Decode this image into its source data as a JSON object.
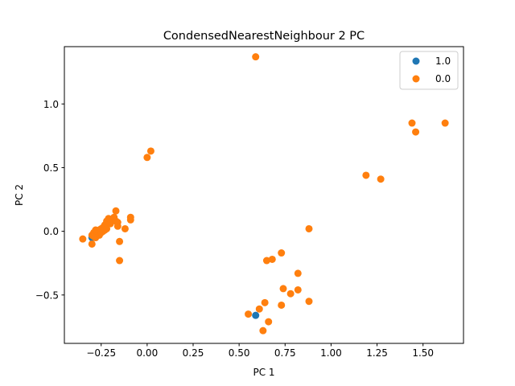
{
  "chart_data": {
    "type": "scatter",
    "title": "CondensedNearestNeighbour 2 PC",
    "xlabel": "PC 1",
    "ylabel": "PC 2",
    "xlim": [
      -0.45,
      1.72
    ],
    "ylim": [
      -0.88,
      1.45
    ],
    "xticks": [
      -0.25,
      0.0,
      0.25,
      0.5,
      0.75,
      1.0,
      1.25,
      1.5
    ],
    "xtick_labels": [
      "−0.25",
      "0.00",
      "0.25",
      "0.50",
      "0.75",
      "1.00",
      "1.25",
      "1.50"
    ],
    "yticks": [
      -0.5,
      0.0,
      0.5,
      1.0
    ],
    "ytick_labels": [
      "−0.5",
      "0.0",
      "0.5",
      "1.0"
    ],
    "grid": false,
    "legend_position": "top-right",
    "series": [
      {
        "name": "1.0",
        "color": "#1f77b4",
        "points": [
          [
            0.59,
            -0.66
          ],
          [
            -0.3,
            -0.05
          ]
        ]
      },
      {
        "name": "0.0",
        "color": "#ff7f0e",
        "points": [
          [
            0.59,
            1.37
          ],
          [
            1.44,
            0.85
          ],
          [
            1.62,
            0.85
          ],
          [
            1.46,
            0.78
          ],
          [
            0.02,
            0.63
          ],
          [
            0.0,
            0.58
          ],
          [
            1.19,
            0.44
          ],
          [
            1.27,
            0.41
          ],
          [
            0.88,
            0.02
          ],
          [
            0.73,
            -0.17
          ],
          [
            0.65,
            -0.23
          ],
          [
            0.68,
            -0.22
          ],
          [
            0.82,
            -0.33
          ],
          [
            0.74,
            -0.45
          ],
          [
            0.82,
            -0.46
          ],
          [
            0.78,
            -0.49
          ],
          [
            0.64,
            -0.56
          ],
          [
            0.73,
            -0.58
          ],
          [
            0.88,
            -0.55
          ],
          [
            0.61,
            -0.61
          ],
          [
            0.55,
            -0.65
          ],
          [
            0.66,
            -0.71
          ],
          [
            0.63,
            -0.78
          ],
          [
            -0.35,
            -0.06
          ],
          [
            -0.3,
            -0.1
          ],
          [
            -0.3,
            -0.03
          ],
          [
            -0.29,
            -0.01
          ],
          [
            -0.29,
            -0.04
          ],
          [
            -0.28,
            0.01
          ],
          [
            -0.28,
            -0.05
          ],
          [
            -0.27,
            -0.02
          ],
          [
            -0.27,
            0.0
          ],
          [
            -0.26,
            -0.03
          ],
          [
            -0.26,
            0.01
          ],
          [
            -0.25,
            -0.01
          ],
          [
            -0.25,
            0.02
          ],
          [
            -0.24,
            0.0
          ],
          [
            -0.24,
            0.03
          ],
          [
            -0.23,
            0.01
          ],
          [
            -0.23,
            0.05
          ],
          [
            -0.22,
            0.02
          ],
          [
            -0.22,
            0.08
          ],
          [
            -0.21,
            0.1
          ],
          [
            -0.2,
            0.06
          ],
          [
            -0.19,
            0.09
          ],
          [
            -0.18,
            0.11
          ],
          [
            -0.17,
            0.08
          ],
          [
            -0.17,
            0.16
          ],
          [
            -0.16,
            0.07
          ],
          [
            -0.16,
            0.04
          ],
          [
            -0.15,
            -0.08
          ],
          [
            -0.15,
            -0.23
          ],
          [
            -0.12,
            0.02
          ],
          [
            -0.09,
            0.11
          ],
          [
            -0.09,
            0.09
          ]
        ]
      }
    ]
  }
}
